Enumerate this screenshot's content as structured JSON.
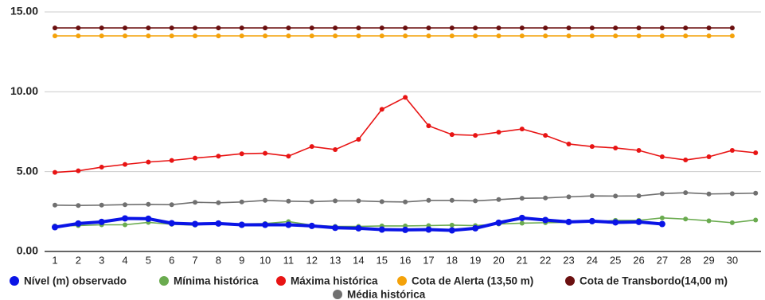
{
  "chart_data": {
    "type": "line",
    "categories": [
      "1",
      "2",
      "3",
      "4",
      "5",
      "6",
      "7",
      "8",
      "9",
      "10",
      "11",
      "12",
      "13",
      "14",
      "15",
      "16",
      "17",
      "18",
      "19",
      "20",
      "21",
      "22",
      "23",
      "24",
      "25",
      "26",
      "27",
      "28",
      "29",
      "30",
      null
    ],
    "ylim": [
      0,
      15
    ],
    "yticks": [
      {
        "value": 0,
        "label": "0.00"
      },
      {
        "value": 5,
        "label": "5.00"
      },
      {
        "value": 10,
        "label": "10.00"
      },
      {
        "value": 15,
        "label": "15.00"
      }
    ],
    "grid": true,
    "legend": "bottom",
    "series": [
      {
        "name": "Nível (m) observado",
        "color": "#0a14e6",
        "values": [
          1.52,
          1.75,
          1.85,
          2.07,
          2.05,
          1.77,
          1.72,
          1.75,
          1.67,
          1.67,
          1.67,
          1.6,
          1.48,
          1.45,
          1.37,
          1.35,
          1.37,
          1.32,
          1.45,
          1.8,
          2.1,
          1.97,
          1.85,
          1.9,
          1.82,
          1.85,
          1.72,
          null,
          null,
          null,
          null
        ]
      },
      {
        "name": "Mínima histórica",
        "color": "#6aab4f",
        "values": [
          1.6,
          1.62,
          1.67,
          1.67,
          1.82,
          1.7,
          1.65,
          1.8,
          1.72,
          1.75,
          1.87,
          1.65,
          1.57,
          1.57,
          1.6,
          1.6,
          1.62,
          1.65,
          1.62,
          1.72,
          1.77,
          1.8,
          1.82,
          1.85,
          1.95,
          1.95,
          2.1,
          2.03,
          1.92,
          1.8,
          1.97
        ]
      },
      {
        "name": "Máxima histórica",
        "color": "#e81414",
        "values": [
          4.95,
          5.05,
          5.28,
          5.45,
          5.6,
          5.7,
          5.85,
          5.97,
          6.12,
          6.15,
          5.97,
          6.57,
          6.38,
          7.02,
          8.9,
          9.65,
          7.87,
          7.32,
          7.27,
          7.47,
          7.67,
          7.27,
          6.73,
          6.57,
          6.48,
          6.33,
          5.93,
          5.73,
          5.93,
          6.33,
          6.18
        ]
      },
      {
        "name": "Cota de Alerta (13,50 m)",
        "color": "#f4a20a",
        "values": [
          13.5,
          13.5,
          13.5,
          13.5,
          13.5,
          13.5,
          13.5,
          13.5,
          13.5,
          13.5,
          13.5,
          13.5,
          13.5,
          13.5,
          13.5,
          13.5,
          13.5,
          13.5,
          13.5,
          13.5,
          13.5,
          13.5,
          13.5,
          13.5,
          13.5,
          13.5,
          13.5,
          13.5,
          13.5,
          13.5,
          null
        ]
      },
      {
        "name": "Cota de Transbordo(14,00 m)",
        "color": "#6b1010",
        "values": [
          14,
          14,
          14,
          14,
          14,
          14,
          14,
          14,
          14,
          14,
          14,
          14,
          14,
          14,
          14,
          14,
          14,
          14,
          14,
          14,
          14,
          14,
          14,
          14,
          14,
          14,
          14,
          14,
          14,
          14,
          null
        ]
      },
      {
        "name": "Média histórica",
        "color": "#707070",
        "values": [
          2.9,
          2.88,
          2.9,
          2.93,
          2.95,
          2.93,
          3.08,
          3.05,
          3.1,
          3.2,
          3.15,
          3.12,
          3.17,
          3.17,
          3.12,
          3.1,
          3.2,
          3.2,
          3.17,
          3.25,
          3.33,
          3.35,
          3.42,
          3.48,
          3.47,
          3.48,
          3.62,
          3.68,
          3.6,
          3.62,
          3.65
        ]
      }
    ]
  }
}
